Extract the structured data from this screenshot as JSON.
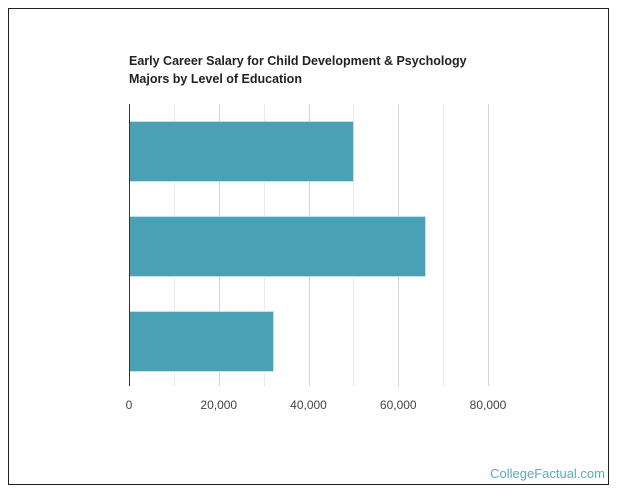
{
  "chart_data": {
    "type": "bar",
    "orientation": "horizontal",
    "title": "Early Career Salary for Child Development & Psychology Majors by Level of Education",
    "title_lines": [
      "Early Career Salary for Child Development & Psychology",
      "Majors by Level of Education"
    ],
    "categories": [
      "",
      "",
      ""
    ],
    "values": [
      49700,
      65700,
      31800
    ],
    "xlabel": "",
    "ylabel": "",
    "xlim": [
      0,
      80000
    ],
    "x_ticks": [
      "0",
      "20,000",
      "40,000",
      "60,000",
      "80,000"
    ],
    "grid": true,
    "legend": null,
    "bar_color": "#4aa0b5"
  },
  "footer": {
    "brand": "CollegeFactual.com"
  }
}
